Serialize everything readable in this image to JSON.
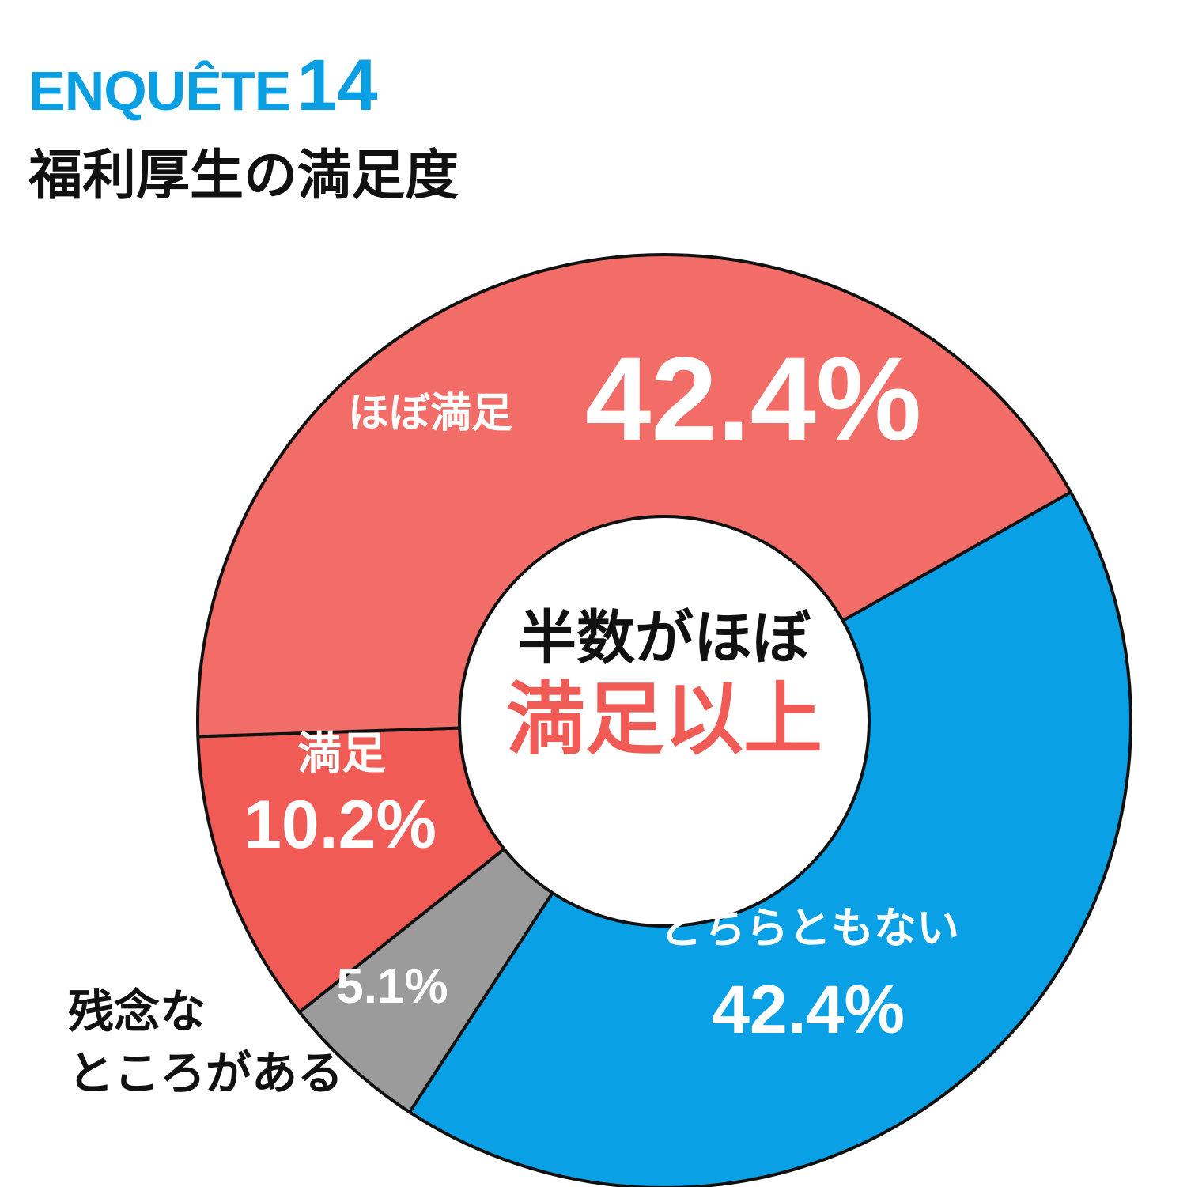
{
  "header": {
    "enquete_word": "ENQUÊTE",
    "enquete_number": "14",
    "subtitle": "福利厚生の満足度"
  },
  "center": {
    "line1": "半数がほぼ",
    "line2": "満足以上"
  },
  "colors": {
    "accent_blue": "#0a9fe3",
    "mostly_satisfied": "#f26d67",
    "satisfied": "#f15b55",
    "disappointed": "#9b9b9b",
    "neutral": "#0aa0e6",
    "center_highlight": "#f15b55",
    "outline": "#111111"
  },
  "chart_data": {
    "type": "pie",
    "variant": "donut",
    "title": "福利厚生の満足度",
    "slices": [
      {
        "label": "どちらともない",
        "value": 42.4,
        "display": "42.4%",
        "color": "#0aa0e6"
      },
      {
        "label": "残念なところがある",
        "label_lines": [
          "残念な",
          "ところがある"
        ],
        "value": 5.1,
        "display": "5.1%",
        "color": "#9b9b9b"
      },
      {
        "label": "満足",
        "value": 10.2,
        "display": "10.2%",
        "color": "#f15b55"
      },
      {
        "label": "ほぼ満足",
        "value": 42.4,
        "display": "42.4%",
        "color": "#f26d67"
      }
    ],
    "total": 100.1,
    "start_angle_deg": 60.6,
    "direction": "clockwise"
  }
}
